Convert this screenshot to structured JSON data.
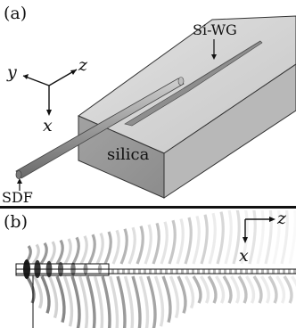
{
  "panel_a": {
    "label": "(a)",
    "silica_label": "silica",
    "waveguide_label": "Si-WG",
    "fiber_label": "SDF",
    "axes": {
      "y": "y",
      "z": "z",
      "x": "x"
    }
  },
  "panel_b": {
    "label": "(b)",
    "axes": {
      "z": "z",
      "x": "x"
    }
  },
  "colors": {
    "block_top": "#d4d4d4",
    "block_front": "#9a9a9a",
    "block_side": "#b4b4b4",
    "fiber": "#9c9c9c",
    "ink": "#111111"
  }
}
